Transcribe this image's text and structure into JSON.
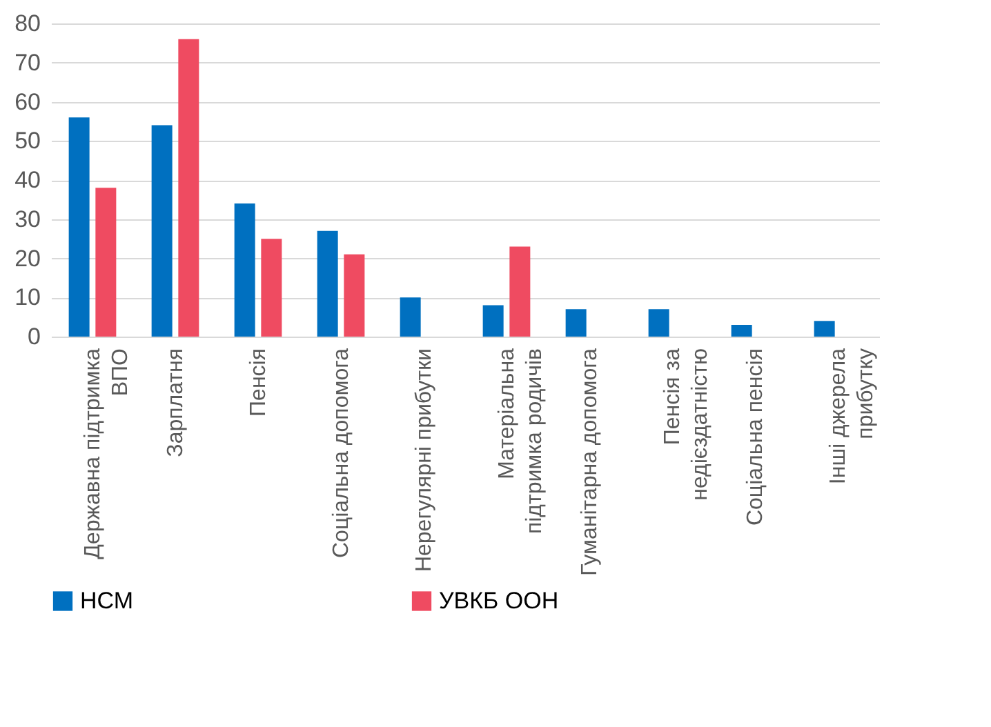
{
  "chart_data": {
    "type": "bar",
    "categories": [
      "Державна підтримка ВПО",
      "Зарплатня",
      "Пенсія",
      "Соціальна допомога",
      "Нерегулярні прибутки",
      "Матеріальна підтримка родичів",
      "Гуманітарна допомога",
      "Пенсія за недієздатністю",
      "Соціальна пенсія",
      "Інші джерела прибутку"
    ],
    "series": [
      {
        "name": "НСМ",
        "color": "#0070c0",
        "values": [
          56,
          54,
          34,
          27,
          10,
          8,
          7,
          7,
          3,
          4
        ]
      },
      {
        "name": "УВКБ ООН",
        "color": "#ef4b61",
        "values": [
          38,
          76,
          25,
          21,
          null,
          23,
          null,
          null,
          null,
          null
        ]
      }
    ],
    "ylim": [
      0,
      80
    ],
    "yticks": [
      0,
      10,
      20,
      30,
      40,
      50,
      60,
      70,
      80
    ],
    "grid": "y",
    "legend": "bottom"
  }
}
